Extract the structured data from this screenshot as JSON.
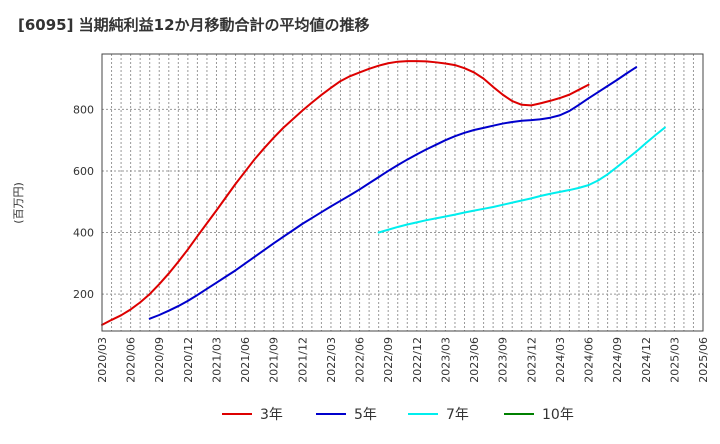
{
  "chart_data": {
    "type": "line",
    "title": "[6095]  当期純利益12か月移動合計の平均値の推移",
    "ylabel": "(百万円)",
    "xlabel": "",
    "ylim": [
      80,
      980
    ],
    "yticks": [
      200,
      400,
      600,
      800
    ],
    "xticks": [
      "2020/03",
      "2020/06",
      "2020/09",
      "2020/12",
      "2021/03",
      "2021/06",
      "2021/09",
      "2021/12",
      "2022/03",
      "2022/06",
      "2022/09",
      "2022/12",
      "2023/03",
      "2023/06",
      "2023/09",
      "2023/12",
      "2024/03",
      "2024/06",
      "2024/09",
      "2024/12",
      "2025/03",
      "2025/06"
    ],
    "grid": true,
    "legend_position": "bottom",
    "series": [
      {
        "name": "3年",
        "color": "#dd0000",
        "start": "2020/03",
        "values": [
          100,
          116,
          131,
          150,
          173,
          200,
          232,
          267,
          305,
          345,
          388,
          430,
          472,
          515,
          558,
          598,
          638,
          674,
          708,
          740,
          768,
          796,
          822,
          847,
          870,
          892,
          908,
          920,
          932,
          942,
          950,
          955,
          957,
          957,
          956,
          953,
          949,
          944,
          934,
          920,
          900,
          873,
          848,
          827,
          815,
          813,
          820,
          828,
          837,
          848,
          864,
          880
        ]
      },
      {
        "name": "5年",
        "color": "#0000cc",
        "start": "2020/08",
        "values": [
          120,
          132,
          146,
          161,
          178,
          197,
          217,
          237,
          257,
          277,
          299,
          321,
          343,
          365,
          386,
          407,
          428,
          447,
          466,
          485,
          503,
          521,
          540,
          560,
          580,
          600,
          619,
          637,
          654,
          670,
          685,
          700,
          713,
          724,
          733,
          740,
          747,
          754,
          759,
          763,
          765,
          768,
          773,
          781,
          795,
          815,
          836,
          856,
          876,
          896,
          917,
          937
        ]
      },
      {
        "name": "7年",
        "color": "#00eeee",
        "start": "2022/08",
        "values": [
          400,
          409,
          418,
          426,
          433,
          440,
          446,
          452,
          458,
          465,
          471,
          477,
          483,
          490,
          497,
          504,
          511,
          519,
          526,
          532,
          538,
          545,
          554,
          569,
          589,
          613,
          638,
          663,
          690,
          716,
          741
        ]
      },
      {
        "name": "10年",
        "color": "#008000",
        "start": "",
        "values": []
      }
    ]
  }
}
